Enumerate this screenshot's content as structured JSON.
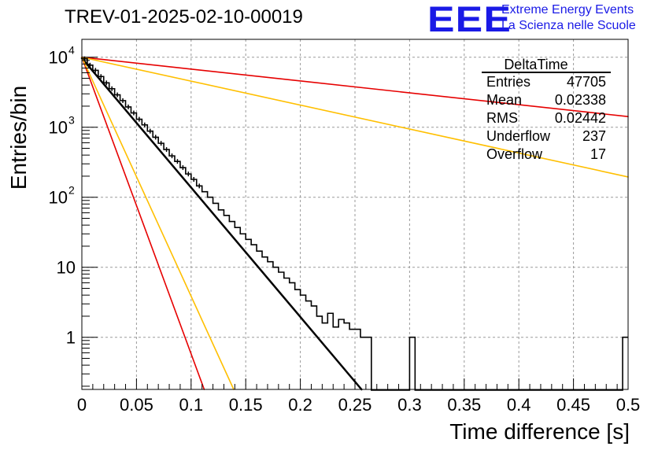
{
  "canvas_title": "TREV-01-2025-02-10-00019",
  "logo": {
    "mark": "EEE",
    "line1": "Extreme Energy Events",
    "line2": "La Scienza nelle Scuole",
    "color": "#1a1ae6"
  },
  "chart_data": {
    "type": "histogram",
    "xlabel": "Time difference [s]",
    "ylabel": "Entries/bin",
    "xlim": [
      0,
      0.5
    ],
    "ylim": [
      0.18,
      18000
    ],
    "yscale": "log",
    "grid": true,
    "x_ticks": [
      "0",
      "0.05",
      "0.1",
      "0.15",
      "0.2",
      "0.25",
      "0.3",
      "0.35",
      "0.4",
      "0.45",
      "0.5"
    ],
    "y_ticks": [
      {
        "value": 1,
        "label": "1",
        "exp": ""
      },
      {
        "value": 10,
        "label": "10",
        "exp": ""
      },
      {
        "value": 100,
        "label": "10",
        "exp": "2"
      },
      {
        "value": 1000,
        "label": "10",
        "exp": "3"
      },
      {
        "value": 10000,
        "label": "10",
        "exp": "4"
      }
    ],
    "stats": {
      "title": "DeltaTime",
      "rows": [
        {
          "label": "Entries",
          "value": "47705"
        },
        {
          "label": "Mean",
          "value": "0.02338"
        },
        {
          "label": "RMS",
          "value": "0.02442"
        },
        {
          "label": "Underflow",
          "value": "237"
        },
        {
          "label": "Overflow",
          "value": "17"
        }
      ],
      "placement": "top-right"
    },
    "histogram": {
      "name": "DeltaTime",
      "bin_width": 0.005,
      "x_start": 0,
      "counts": [
        9500,
        7700,
        6500,
        5300,
        4300,
        3550,
        2900,
        2400,
        1950,
        1600,
        1300,
        1080,
        880,
        720,
        590,
        480,
        390,
        325,
        265,
        215,
        180,
        145,
        120,
        100,
        82,
        66,
        55,
        45,
        37,
        30,
        25,
        21,
        17,
        14,
        12,
        10,
        8.5,
        7,
        6,
        4.8,
        4,
        3.3,
        2.8,
        2,
        1.6,
        2.2,
        1.4,
        1.8,
        1.6,
        1.3,
        1.3,
        1,
        1,
        0,
        0,
        0,
        0,
        0,
        0,
        0,
        1,
        0,
        0,
        0,
        0,
        0,
        0,
        0,
        0,
        0,
        0,
        0,
        0,
        0,
        0,
        0,
        0,
        0,
        0,
        0,
        0,
        0,
        0,
        0,
        0,
        0,
        0,
        0,
        0,
        0,
        0,
        0,
        0,
        0,
        0,
        0,
        0,
        0,
        0,
        1
      ],
      "color": "#000000"
    },
    "fit_lines": [
      {
        "color": "#000000",
        "y0": 9700,
        "x_end": 0.256,
        "y_end": 0.18,
        "width": 2.5
      },
      {
        "color": "#e60000",
        "y0": 10000,
        "x_end": 0.5,
        "y_end": 1420,
        "width": 1.6
      },
      {
        "color": "#e60000",
        "y0": 10000,
        "x_end": 0.112,
        "y_end": 0.18,
        "width": 1.6
      },
      {
        "color": "#ffbf00",
        "y0": 10000,
        "x_end": 0.5,
        "y_end": 195,
        "width": 1.6
      },
      {
        "color": "#ffbf00",
        "y0": 10000,
        "x_end": 0.139,
        "y_end": 0.18,
        "width": 1.6
      }
    ]
  }
}
